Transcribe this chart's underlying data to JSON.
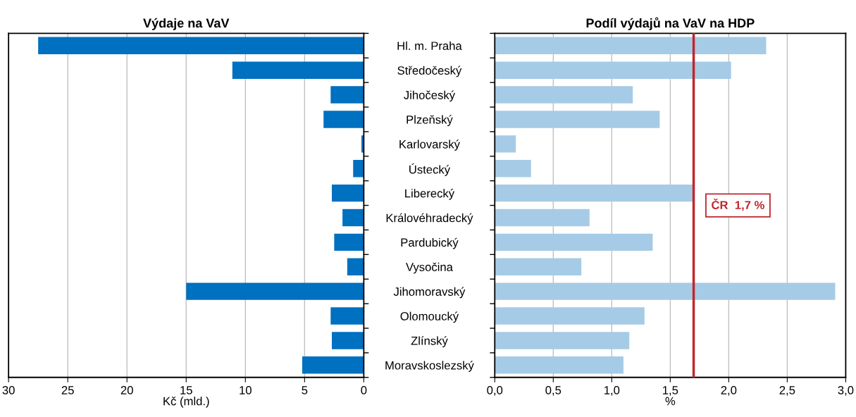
{
  "chart_data": [
    {
      "type": "bar",
      "orientation": "horizontal",
      "title": "Výdaje na VaV",
      "xlabel": "Kč (mld.)",
      "categories": [
        "Hl. m. Praha",
        "Středočeský",
        "Jihočeský",
        "Plzeňský",
        "Karlovarský",
        "Ústecký",
        "Liberecký",
        "Královéhradecký",
        "Pardubický",
        "Vysočina",
        "Jihomoravský",
        "Olomoucký",
        "Zlínský",
        "Moravskoslezský"
      ],
      "values": [
        27.5,
        11.1,
        2.8,
        3.4,
        0.2,
        0.9,
        2.7,
        1.8,
        2.5,
        1.4,
        15.0,
        2.8,
        2.7,
        5.2
      ],
      "color": "#0070c0",
      "xlim": [
        30,
        0
      ],
      "xticks": [
        30,
        25,
        20,
        15,
        10,
        5,
        0
      ],
      "grid": "x"
    },
    {
      "type": "bar",
      "orientation": "horizontal",
      "title": "Podíl výdajů na VaV na HDP",
      "xlabel": "%",
      "categories": [
        null,
        null,
        null,
        null,
        null,
        null,
        null,
        null,
        null,
        null,
        null,
        null,
        null,
        null
      ],
      "tick_labels": "x",
      "values": [
        2.32,
        2.02,
        1.18,
        1.41,
        0.18,
        0.31,
        1.69,
        0.81,
        1.35,
        0.74,
        2.91,
        1.28,
        1.15,
        1.1
      ],
      "color": "#a6cbe6",
      "xlim": [
        0,
        3
      ],
      "xticks": [
        {
          "value": 0,
          "label": "0,0"
        },
        {
          "value": 0.5,
          "label": "0,5"
        },
        {
          "value": 1,
          "label": "1,0"
        },
        {
          "value": 1.5,
          "label": "1,5"
        },
        {
          "value": 2,
          "label": "2,0"
        },
        {
          "value": 2.5,
          "label": "2,5"
        },
        {
          "value": 3,
          "label": "3,0"
        }
      ],
      "grid": "x",
      "ref_lines": [
        {
          "axis": "x",
          "value": 1.7,
          "label": "ČR  1,7 %",
          "color": "#c0262d"
        }
      ]
    }
  ]
}
